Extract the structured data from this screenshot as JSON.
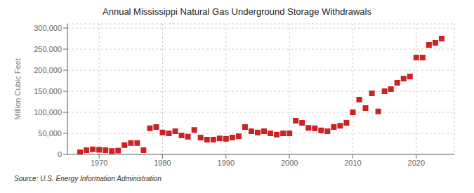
{
  "chart_data": {
    "type": "scatter",
    "title": "Annual Mississippi Natural  Gas Underground Storage Withdrawals",
    "ylabel": "Million Cubic Feet",
    "source": "Source: U.S. Energy Information Administration",
    "color": "#cc2222",
    "marker": "square",
    "grid": true,
    "x": [
      1967,
      1968,
      1969,
      1970,
      1971,
      1972,
      1973,
      1974,
      1975,
      1976,
      1977,
      1978,
      1979,
      1980,
      1981,
      1982,
      1983,
      1984,
      1985,
      1986,
      1987,
      1988,
      1989,
      1990,
      1991,
      1992,
      1993,
      1994,
      1995,
      1996,
      1997,
      1998,
      1999,
      2000,
      2001,
      2002,
      2003,
      2004,
      2005,
      2006,
      2007,
      2008,
      2009,
      2010,
      2011,
      2012,
      2013,
      2014,
      2015,
      2016,
      2017,
      2018,
      2019,
      2020,
      2021,
      2022,
      2023,
      2024
    ],
    "values": [
      5000,
      10000,
      12000,
      11000,
      10000,
      8000,
      9000,
      22000,
      27000,
      27000,
      10000,
      62000,
      65000,
      52000,
      50000,
      55000,
      45000,
      42000,
      58000,
      40000,
      35000,
      35000,
      38000,
      37000,
      40000,
      43000,
      65000,
      55000,
      52000,
      55000,
      50000,
      47000,
      50000,
      50000,
      80000,
      75000,
      63000,
      62000,
      57000,
      55000,
      65000,
      68000,
      75000,
      100000,
      130000,
      110000,
      145000,
      102000,
      150000,
      155000,
      170000,
      180000,
      185000,
      230000,
      230000,
      260000,
      265000,
      275000
    ],
    "xlim": [
      1965,
      2026
    ],
    "xticks": [
      1970,
      1980,
      1990,
      2000,
      2010,
      2020
    ],
    "ylim": [
      0,
      310000
    ],
    "yticks": [
      0,
      {
        "value": 50000,
        "label": "50,000"
      },
      {
        "value": 100000,
        "label": "100,000"
      },
      {
        "value": 150000,
        "label": "150,000"
      },
      {
        "value": 200000,
        "label": "200,000"
      },
      {
        "value": 250000,
        "label": "250,000"
      },
      {
        "value": 300000,
        "label": "300,000"
      }
    ]
  }
}
